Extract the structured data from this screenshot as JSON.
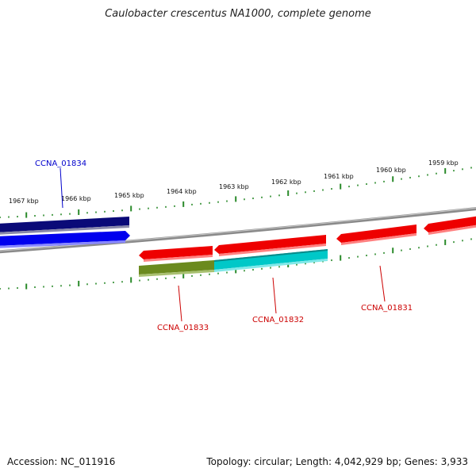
{
  "title": "Caulobacter crescentus NA1000, complete genome",
  "footer": {
    "accession": "Accession: NC_011916",
    "summary": "Topology: circular; Length: 4,042,929 bp; Genes: 3,933"
  },
  "colors": {
    "backbone": "#8a8a8a",
    "tick": "#2a8a2a",
    "forward_label": "#0000cc",
    "reverse_label": "#cc0000"
  },
  "ticks": [
    {
      "label": "1967 kbp"
    },
    {
      "label": "1966 kbp"
    },
    {
      "label": "1965 kbp"
    },
    {
      "label": "1964 kbp"
    },
    {
      "label": "1963 kbp"
    },
    {
      "label": "1962 kbp"
    },
    {
      "label": "1961 kbp"
    },
    {
      "label": "1960 kbp"
    },
    {
      "label": "1959 kbp"
    }
  ],
  "genes": [
    {
      "name": "gene-block-outer-navy",
      "color": "#0a0a78",
      "label": ""
    },
    {
      "name": "gene-ccna-01834",
      "color": "#0000ee",
      "label": "CCNA_01834"
    },
    {
      "name": "gene-ccna-01833",
      "color": "#ee0000",
      "label": "CCNA_01833"
    },
    {
      "name": "gene-ccna-01832",
      "color": "#ee0000",
      "label": "CCNA_01832"
    },
    {
      "name": "gene-ccna-01831",
      "color": "#ee0000",
      "label": "CCNA_01831"
    },
    {
      "name": "gene-right-edge",
      "color": "#ee0000",
      "label": ""
    },
    {
      "name": "feature-olive",
      "color": "#6b8a1e",
      "label": ""
    },
    {
      "name": "feature-cyan",
      "color": "#00c8c8",
      "label": ""
    }
  ]
}
